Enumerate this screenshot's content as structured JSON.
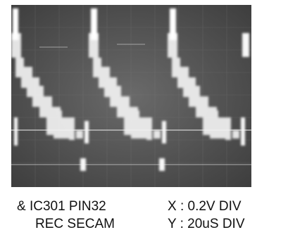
{
  "caption": {
    "signal_line1": "& IC301 PIN32",
    "signal_line2": "REC SECAM",
    "x_scale": "X : 0.2V DIV",
    "y_scale": "Y : 20uS DIV"
  },
  "colors": {
    "screen_background": "#585858",
    "trace": "#f2f2f2",
    "grid": "#787878"
  }
}
